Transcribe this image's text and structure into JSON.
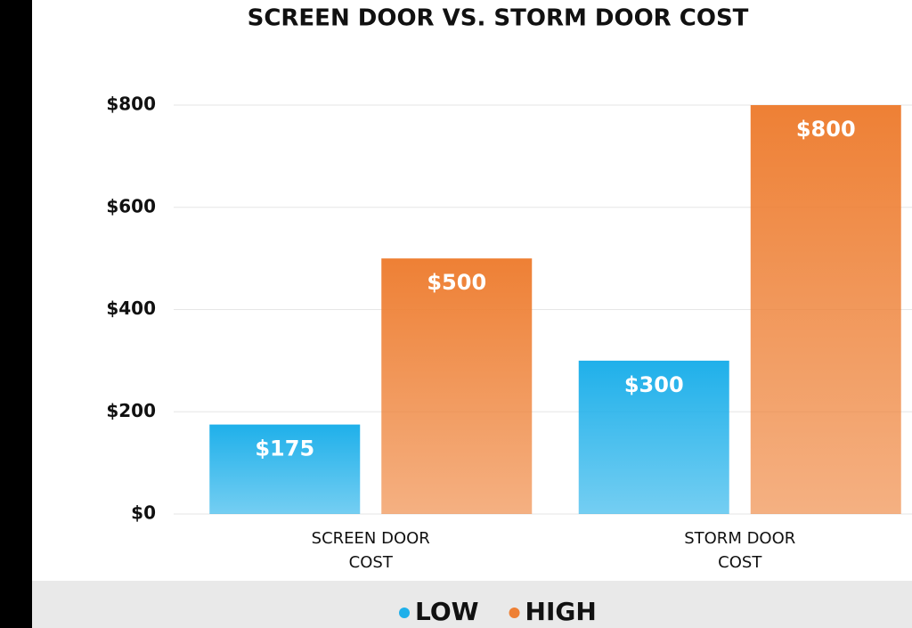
{
  "chart_data": {
    "type": "bar",
    "title": "SCREEN DOOR VS. STORM DOOR COST",
    "categories": [
      "SCREEN DOOR COST",
      "STORM DOOR COST"
    ],
    "series": [
      {
        "name": "LOW",
        "color": "#1fb0ea",
        "values": [
          175,
          300
        ],
        "value_labels": [
          "$175",
          "$300"
        ]
      },
      {
        "name": "HIGH",
        "color": "#ee8035",
        "values": [
          500,
          800
        ],
        "value_labels": [
          "$500",
          "$800"
        ]
      }
    ],
    "ylim": [
      0,
      800
    ],
    "yticks": [
      {
        "value": 0,
        "label": "$0"
      },
      {
        "value": 200,
        "label": "$200"
      },
      {
        "value": 400,
        "label": "$400"
      },
      {
        "value": 600,
        "label": "$600"
      },
      {
        "value": 800,
        "label": "$800"
      }
    ],
    "grid": true,
    "legend": "bottom"
  }
}
